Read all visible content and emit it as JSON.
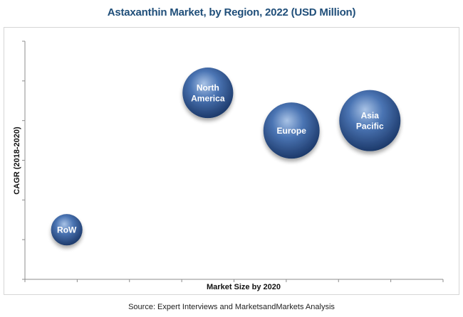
{
  "chart_data": {
    "type": "scatter",
    "subtype": "bubble",
    "title": "Astaxanthin Market, by Region, 2022 (USD Million)",
    "xlabel": "Market Size by 2020",
    "ylabel": "CAGR (2018-2020)",
    "grid": false,
    "legend": "none",
    "xlim": [
      0,
      8
    ],
    "ylim": [
      0,
      6
    ],
    "series": [
      {
        "points": [
          {
            "label": "RoW",
            "x": 0.8,
            "y": 1.25,
            "size": 1
          },
          {
            "label": "North America",
            "x": 3.5,
            "y": 4.7,
            "size": 2.6
          },
          {
            "label": "Europe",
            "x": 5.1,
            "y": 3.75,
            "size": 3.2
          },
          {
            "label": "Asia Pacific",
            "x": 6.6,
            "y": 4.0,
            "size": 3.8
          }
        ]
      }
    ],
    "colors": {
      "bubble_highlight": "#a9c3e6",
      "bubble_mid": "#4a74b3",
      "bubble_dark": "#1d3a6b",
      "title": "#1f4e79",
      "axis": "#8c8c8c"
    }
  },
  "source": "Source: Expert Interviews and MarketsandMarkets Analysis"
}
